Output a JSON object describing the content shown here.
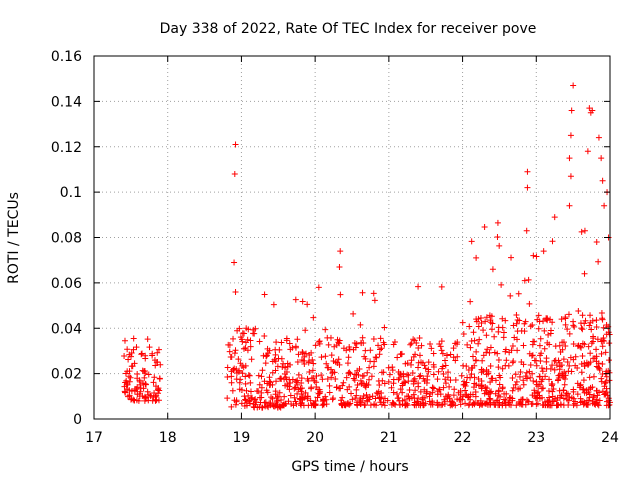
{
  "chart_data": {
    "type": "scatter",
    "title": "Day 338 of 2022, Rate Of TEC Index for receiver pove",
    "xlabel": "GPS time / hours",
    "ylabel": "ROTI / TECUs",
    "xlim": [
      17,
      24
    ],
    "ylim": [
      0,
      0.16
    ],
    "x_ticks": [
      "17",
      "18",
      "19",
      "20",
      "21",
      "22",
      "23",
      "24"
    ],
    "y_ticks": [
      "0",
      "0.02",
      "0.04",
      "0.06",
      "0.08",
      "0.1",
      "0.12",
      "0.14",
      "0.16"
    ],
    "grid": true,
    "legend": "none",
    "marker": "plus",
    "marker_color": "#ff0000",
    "series": [
      {
        "segments": [
          {
            "x_start": 17.4,
            "x_end": 17.9,
            "y_base": 0.008,
            "y_spread": 0.028,
            "y_max": 0.042,
            "density": 110
          },
          {
            "x_start": 18.8,
            "x_end": 19.55,
            "y_base": 0.005,
            "y_spread": 0.035,
            "y_max": 0.056,
            "density": 170
          },
          {
            "x_start": 19.55,
            "x_end": 22.0,
            "y_base": 0.006,
            "y_spread": 0.03,
            "y_max": 0.059,
            "density": 520
          },
          {
            "x_start": 22.0,
            "x_end": 24.0,
            "y_base": 0.006,
            "y_spread": 0.04,
            "y_max": 0.09,
            "density": 560
          }
        ],
        "spikes": [
          {
            "x": 18.92,
            "y": 0.121
          },
          {
            "x": 18.91,
            "y": 0.108
          },
          {
            "x": 18.9,
            "y": 0.069
          },
          {
            "x": 18.92,
            "y": 0.056
          },
          {
            "x": 20.34,
            "y": 0.074
          },
          {
            "x": 20.33,
            "y": 0.067
          },
          {
            "x": 20.05,
            "y": 0.058
          },
          {
            "x": 22.88,
            "y": 0.109
          },
          {
            "x": 22.88,
            "y": 0.102
          },
          {
            "x": 22.87,
            "y": 0.083
          },
          {
            "x": 23.25,
            "y": 0.089
          },
          {
            "x": 23.45,
            "y": 0.094
          },
          {
            "x": 23.5,
            "y": 0.147
          },
          {
            "x": 23.48,
            "y": 0.136
          },
          {
            "x": 23.47,
            "y": 0.125
          },
          {
            "x": 23.45,
            "y": 0.115
          },
          {
            "x": 23.47,
            "y": 0.107
          },
          {
            "x": 23.72,
            "y": 0.137
          },
          {
            "x": 23.74,
            "y": 0.135
          },
          {
            "x": 23.76,
            "y": 0.136
          },
          {
            "x": 23.7,
            "y": 0.118
          },
          {
            "x": 23.85,
            "y": 0.124
          },
          {
            "x": 23.88,
            "y": 0.115
          },
          {
            "x": 23.9,
            "y": 0.105
          },
          {
            "x": 23.92,
            "y": 0.094
          },
          {
            "x": 23.96,
            "y": 0.1
          },
          {
            "x": 23.98,
            "y": 0.08
          },
          {
            "x": 23.66,
            "y": 0.083
          },
          {
            "x": 23.82,
            "y": 0.078
          },
          {
            "x": 23.1,
            "y": 0.074
          },
          {
            "x": 22.96,
            "y": 0.072
          }
        ]
      }
    ]
  }
}
